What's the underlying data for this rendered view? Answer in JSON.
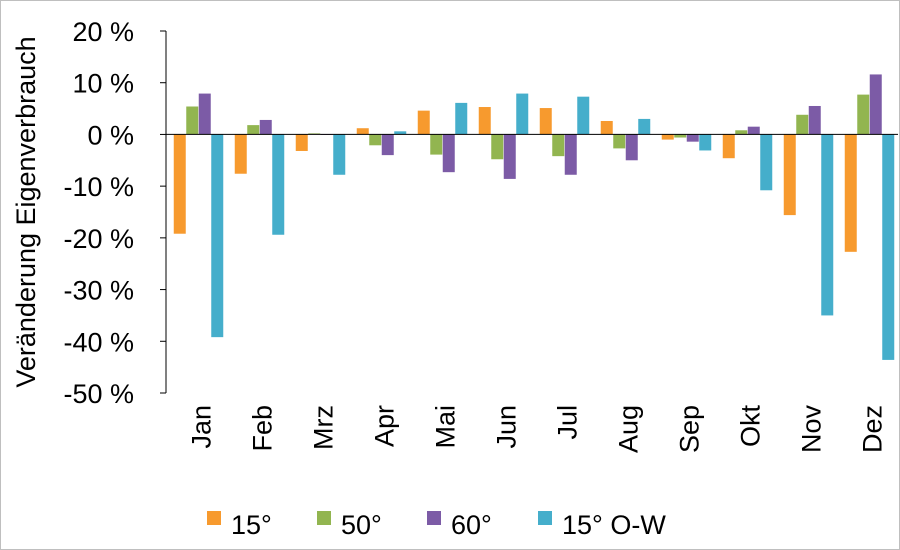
{
  "chart_data": {
    "type": "bar",
    "title": "",
    "xlabel": "",
    "ylabel": "Veränderung Eigenverbrauch",
    "ylim": [
      -50,
      20
    ],
    "yticks": [
      20,
      10,
      0,
      -10,
      -20,
      -30,
      -40,
      -50
    ],
    "ytick_labels": [
      "20 %",
      "10 %",
      "0 %",
      "-10 %",
      "-20 %",
      "-30 %",
      "-40 %",
      "-50 %"
    ],
    "categories": [
      "Jan",
      "Feb",
      "Mrz",
      "Apr",
      "Mai",
      "Jun",
      "Jul",
      "Aug",
      "Sep",
      "Okt",
      "Nov",
      "Dez"
    ],
    "grid": false,
    "legend_position": "bottom",
    "series": [
      {
        "name": "15°",
        "color": "#F79A2E",
        "values": [
          -19.2,
          -7.6,
          -3.2,
          1.2,
          4.6,
          5.3,
          5.1,
          2.6,
          -1.0,
          -4.6,
          -15.6,
          -22.7
        ]
      },
      {
        "name": "50°",
        "color": "#92B550",
        "values": [
          5.4,
          1.8,
          0.2,
          -2.1,
          -3.9,
          -4.8,
          -4.2,
          -2.7,
          -0.6,
          0.8,
          3.8,
          7.7
        ]
      },
      {
        "name": "60°",
        "color": "#7C5BA6",
        "values": [
          7.9,
          2.8,
          0.0,
          -4.0,
          -7.3,
          -8.6,
          -7.8,
          -5.0,
          -1.4,
          1.5,
          5.5,
          11.6
        ]
      },
      {
        "name": "15° O-W",
        "color": "#45AECB",
        "values": [
          -39.2,
          -19.4,
          -7.8,
          0.6,
          6.1,
          7.9,
          7.3,
          3.0,
          -3.1,
          -10.8,
          -35.0,
          -43.6
        ]
      }
    ]
  }
}
